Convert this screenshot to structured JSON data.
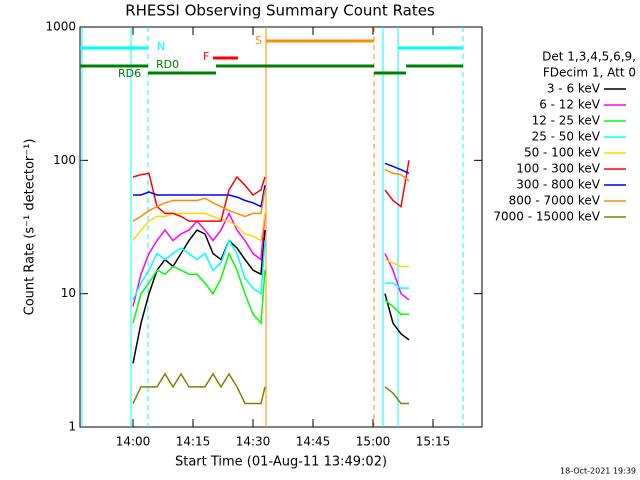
{
  "chart_data": {
    "type": "line",
    "title": "RHESSI Observing Summary Count Rates",
    "xlabel": "Start Time (01-Aug-11 13:49:02)",
    "ylabel": "Count Rate (s⁻¹ detector⁻¹)",
    "log_y": true,
    "xlim": [
      -13.25,
      87.25
    ],
    "xticks": [
      {
        "value": 0,
        "label": "14:00"
      },
      {
        "value": 15,
        "label": "14:15"
      },
      {
        "value": 30,
        "label": "14:30"
      },
      {
        "value": 45,
        "label": "14:45"
      },
      {
        "value": 60,
        "label": "15:00"
      },
      {
        "value": 75,
        "label": "15:15"
      }
    ],
    "ylim": [
      1,
      1000
    ],
    "yticks": [
      1,
      10,
      100,
      1000
    ],
    "legend_header": [
      "Det 1,3,4,5,6,9,",
      "FDecim 1, Att 0"
    ],
    "footer": "18-Oct-2021 19:39",
    "x": [
      0,
      2,
      4,
      6,
      8,
      10,
      12,
      14,
      16,
      18,
      20,
      22,
      24,
      26,
      28,
      30,
      32,
      33,
      48,
      63,
      65,
      67,
      69
    ],
    "series": [
      {
        "name": "3 - 6 keV",
        "color": "#000000",
        "values": [
          3,
          6,
          10,
          15,
          18,
          16,
          20,
          25,
          30,
          28,
          20,
          18,
          25,
          22,
          18,
          15,
          14,
          30,
          null,
          10,
          6,
          5,
          4.5
        ]
      },
      {
        "name": "6 - 12 keV",
        "color": "#ff00ff",
        "values": [
          8,
          14,
          20,
          25,
          30,
          25,
          28,
          30,
          35,
          30,
          25,
          30,
          40,
          30,
          25,
          20,
          18,
          40,
          null,
          20,
          15,
          10,
          9
        ]
      },
      {
        "name": "12 - 25 keV",
        "color": "#00ff00",
        "values": [
          6,
          10,
          12,
          15,
          14,
          16,
          15,
          14,
          14,
          12,
          10,
          13,
          20,
          15,
          10,
          7,
          6,
          15,
          null,
          9,
          8,
          7,
          7
        ]
      },
      {
        "name": "25 - 50 keV",
        "color": "#00ffff",
        "values": [
          9,
          12,
          15,
          20,
          18,
          20,
          22,
          20,
          18,
          20,
          15,
          17,
          25,
          20,
          13,
          11,
          10,
          25,
          null,
          12,
          12,
          11,
          11
        ]
      },
      {
        "name": "50 - 100 keV",
        "color": "#ffd700",
        "values": [
          25,
          30,
          35,
          38,
          38,
          40,
          40,
          40,
          40,
          40,
          38,
          36,
          35,
          32,
          28,
          27,
          25,
          40,
          null,
          18,
          17,
          16,
          16
        ]
      },
      {
        "name": "100 - 300 keV",
        "color": "#ff0000",
        "values": [
          75,
          78,
          80,
          45,
          40,
          40,
          38,
          35,
          35,
          35,
          35,
          35,
          60,
          75,
          65,
          55,
          60,
          75,
          null,
          60,
          50,
          45,
          100
        ]
      },
      {
        "name": "300 - 800 keV",
        "color": "#0000ff",
        "values": [
          55,
          55,
          58,
          55,
          55,
          55,
          55,
          55,
          55,
          55,
          55,
          55,
          55,
          53,
          50,
          48,
          45,
          65,
          null,
          95,
          90,
          85,
          80
        ]
      },
      {
        "name": "800 - 7000 keV",
        "color": "#ff8c00",
        "values": [
          35,
          38,
          42,
          45,
          48,
          50,
          50,
          50,
          50,
          52,
          48,
          45,
          42,
          40,
          38,
          40,
          40,
          60,
          null,
          85,
          80,
          78,
          70
        ]
      },
      {
        "name": "7000 - 15000 keV",
        "color": "#808000",
        "values": [
          1.5,
          2,
          2,
          2,
          2.5,
          2,
          2.5,
          2,
          2,
          2,
          2.5,
          2,
          2.5,
          2,
          1.5,
          1.5,
          1.5,
          2,
          null,
          2,
          1.8,
          1.5,
          1.5
        ]
      }
    ],
    "flags": [
      {
        "label": "N",
        "color": "#00ffff",
        "intervals": [
          [
            -13.25,
            3.75
          ],
          [
            66.25,
            82.5
          ]
        ]
      },
      {
        "label": "F",
        "color": "#ff0000",
        "intervals": [
          [
            20,
            26.25
          ]
        ]
      },
      {
        "label": "S",
        "color": "#ff8c00",
        "intervals": [
          [
            33.25,
            60.25
          ]
        ]
      },
      {
        "label": "RD0",
        "color": "#008000",
        "intervals": [
          [
            -13.25,
            3.75
          ],
          [
            20.75,
            60.25
          ],
          [
            68.25,
            82.5
          ]
        ]
      },
      {
        "label": "RD6",
        "color": "#008000",
        "intervals": [
          [
            3.75,
            20.75
          ],
          [
            60.25,
            68.25
          ]
        ]
      }
    ],
    "vlines": [
      {
        "x": -12.75,
        "color": "#00ffff",
        "dashed": false
      },
      {
        "x": -0.5,
        "color": "#00ffff",
        "dashed": false
      },
      {
        "x": 3.75,
        "color": "#00ffff",
        "dashed": true
      },
      {
        "x": 33.25,
        "color": "#ff8c00",
        "dashed": false
      },
      {
        "x": 60.25,
        "color": "#ff8c00",
        "dashed": true
      },
      {
        "x": 62.5,
        "color": "#00ffff",
        "dashed": false
      },
      {
        "x": 66.25,
        "color": "#00ffff",
        "dashed": false
      },
      {
        "x": 82.5,
        "color": "#00ffff",
        "dashed": true
      }
    ]
  }
}
